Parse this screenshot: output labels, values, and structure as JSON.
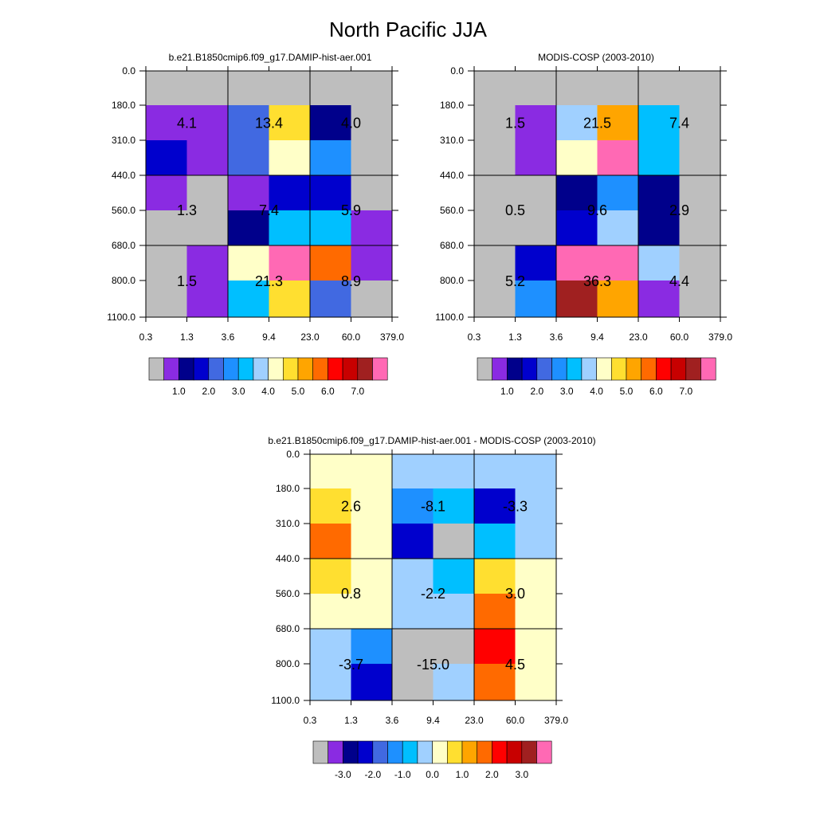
{
  "figure": {
    "title": "North Pacific JJA"
  },
  "palette": {
    "main": [
      "#bebebe",
      "#8a2be2",
      "#00008b",
      "#0000cd",
      "#4169e1",
      "#1e90ff",
      "#00bfff",
      "#a0d0ff",
      "#ffffc8",
      "#ffdf30",
      "#ffa500",
      "#ff6a00",
      "#ff0000",
      "#c80000",
      "#a02020",
      "#ff69b4"
    ],
    "diff": [
      "#bebebe",
      "#8a2be2",
      "#00008b",
      "#0000cd",
      "#4169e1",
      "#1e90ff",
      "#00bfff",
      "#a0d0ff",
      "#ffffc8",
      "#ffdf30",
      "#ffa500",
      "#ff6a00",
      "#ff0000",
      "#c80000",
      "#a02020",
      "#ff69b4"
    ]
  },
  "chart_data": [
    {
      "type": "heatmap",
      "title": "b.e21.B1850cmip6.f09_g17.DAMIP-hist-aer.001",
      "x_ticks": [
        "0.3",
        "1.3",
        "3.6",
        "9.4",
        "23.0",
        "60.0",
        "379.0"
      ],
      "y_ticks": [
        "0.0",
        "180.0",
        "310.0",
        "440.0",
        "560.0",
        "680.0",
        "800.0",
        "1100.0"
      ],
      "cells": [
        [
          0,
          0,
          0,
          0,
          0,
          0
        ],
        [
          1,
          1,
          4,
          9,
          2,
          0
        ],
        [
          3,
          1,
          4,
          8,
          5,
          0
        ],
        [
          1,
          0,
          1,
          3,
          3,
          0
        ],
        [
          0,
          0,
          2,
          6,
          6,
          1
        ],
        [
          0,
          1,
          8,
          15,
          11,
          1
        ],
        [
          0,
          1,
          6,
          9,
          4,
          0
        ]
      ],
      "block_labels": [
        "4.1",
        "13.4",
        "4.0",
        "1.3",
        "7.4",
        "5.9",
        "1.5",
        "21.3",
        "8.9"
      ],
      "colorbar_labels": [
        "1.0",
        "2.0",
        "3.0",
        "4.0",
        "5.0",
        "6.0",
        "7.0"
      ]
    },
    {
      "type": "heatmap",
      "title": "MODIS-COSP (2003-2010)",
      "x_ticks": [
        "0.3",
        "1.3",
        "3.6",
        "9.4",
        "23.0",
        "60.0",
        "379.0"
      ],
      "y_ticks": [
        "0.0",
        "180.0",
        "310.0",
        "440.0",
        "560.0",
        "680.0",
        "800.0",
        "1100.0"
      ],
      "cells": [
        [
          0,
          0,
          0,
          0,
          0,
          0
        ],
        [
          0,
          1,
          7,
          10,
          6,
          0
        ],
        [
          0,
          1,
          8,
          15,
          6,
          0
        ],
        [
          0,
          0,
          2,
          5,
          2,
          0
        ],
        [
          0,
          0,
          3,
          7,
          2,
          0
        ],
        [
          0,
          3,
          15,
          15,
          7,
          0
        ],
        [
          0,
          5,
          14,
          10,
          1,
          0
        ]
      ],
      "block_labels": [
        "1.5",
        "21.5",
        "7.4",
        "0.5",
        "9.6",
        "2.9",
        "5.2",
        "36.3",
        "4.4"
      ],
      "colorbar_labels": [
        "1.0",
        "2.0",
        "3.0",
        "4.0",
        "5.0",
        "6.0",
        "7.0"
      ]
    },
    {
      "type": "heatmap",
      "title": "b.e21.B1850cmip6.f09_g17.DAMIP-hist-aer.001 - MODIS-COSP (2003-2010)",
      "x_ticks": [
        "0.3",
        "1.3",
        "3.6",
        "9.4",
        "23.0",
        "60.0",
        "379.0"
      ],
      "y_ticks": [
        "0.0",
        "180.0",
        "310.0",
        "440.0",
        "560.0",
        "680.0",
        "800.0",
        "1100.0"
      ],
      "cells": [
        [
          8,
          8,
          7,
          7,
          7,
          7
        ],
        [
          9,
          8,
          5,
          6,
          3,
          7
        ],
        [
          11,
          8,
          3,
          0,
          6,
          7
        ],
        [
          9,
          8,
          7,
          6,
          9,
          8
        ],
        [
          8,
          8,
          7,
          7,
          11,
          8
        ],
        [
          7,
          5,
          0,
          0,
          12,
          8
        ],
        [
          7,
          3,
          0,
          7,
          11,
          8
        ]
      ],
      "block_labels": [
        "2.6",
        "-8.1",
        "-3.3",
        "0.8",
        "-2.2",
        "3.0",
        "-3.7",
        "-15.0",
        "4.5"
      ],
      "colorbar_labels": [
        "-3.0",
        "-2.0",
        "-1.0",
        "0.0",
        "1.0",
        "2.0",
        "3.0"
      ]
    }
  ]
}
